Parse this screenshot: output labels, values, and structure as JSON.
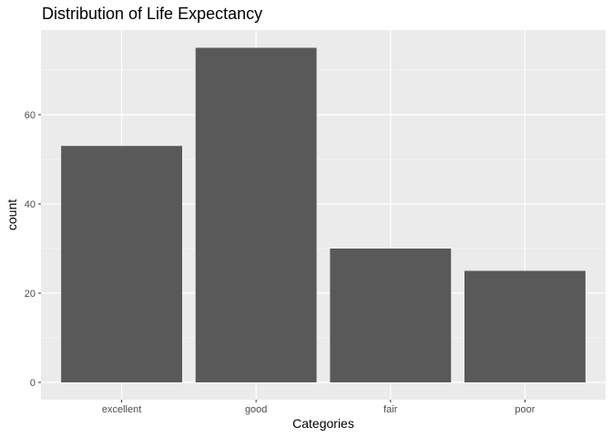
{
  "chart_data": {
    "type": "bar",
    "title": "Distribution of Life Expectancy",
    "xlabel": "Categories",
    "ylabel": "count",
    "categories": [
      "excellent",
      "good",
      "fair",
      "poor"
    ],
    "values": [
      53,
      75,
      30,
      25
    ],
    "ylim": [
      0,
      78.75
    ],
    "yticks": [
      0,
      20,
      40,
      60
    ],
    "grid": true,
    "legend": "none",
    "colors": {
      "bar": "#595959",
      "panel_background": "#ebebeb",
      "grid": "#ffffff",
      "tick_text": "#4d4d4d",
      "tick_mark": "#333333"
    }
  }
}
